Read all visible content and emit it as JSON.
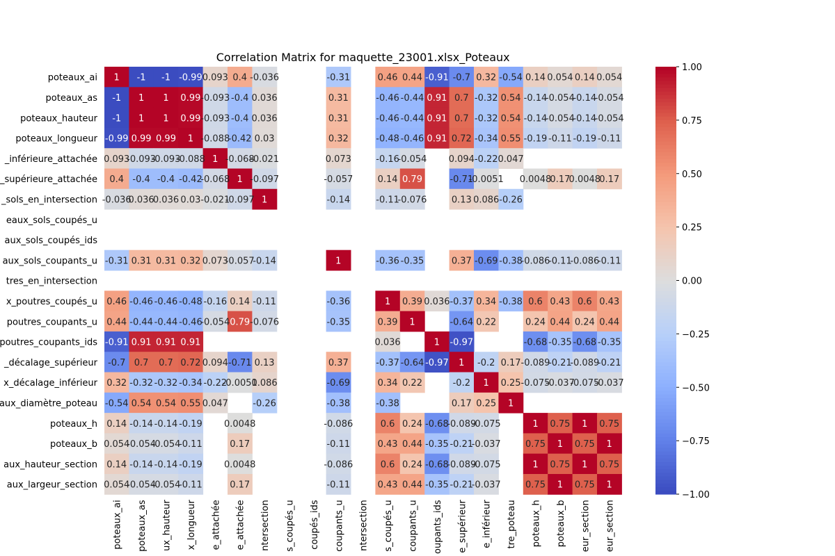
{
  "chart_data": {
    "type": "heatmap",
    "title": "Correlation Matrix for maquette_23001.xlsx_Poteaux",
    "y_labels": [
      "poteaux_ai",
      "poteaux_as",
      "poteaux_hauteur",
      "poteaux_longueur",
      "_inférieure_attachée",
      "_supérieure_attachée",
      "_sols_en_intersection",
      "eaux_sols_coupés_u",
      "aux_sols_coupés_ids",
      "aux_sols_coupants_u",
      "tres_en_intersection",
      "x_poutres_coupés_u",
      "poutres_coupants_u",
      "poutres_coupants_ids",
      "_décalage_supérieur",
      "x_décalage_inférieur",
      "aux_diamètre_poteau",
      "poteaux_h",
      "poteaux_b",
      "aux_hauteur_section",
      "aux_largeur_section"
    ],
    "x_labels": [
      "poteaux_ai",
      "poteaux_as",
      "ux_hauteur",
      "x_longueur",
      "e_attachée",
      "e_attachée",
      "ntersection",
      "s_coupés_u",
      "coupés_ids",
      "coupants_u",
      "ntersection",
      "s_coupés_u",
      "coupants_u",
      "oupants_ids",
      "e_supérieur",
      "e_inférieur",
      "tre_poteau",
      "poteaux_h",
      "poteaux_b",
      "eur_section",
      "eur_section"
    ],
    "matrix": [
      [
        1,
        -1,
        -1,
        -0.99,
        0.093,
        0.4,
        -0.036,
        null,
        null,
        -0.31,
        null,
        0.46,
        0.44,
        -0.91,
        -0.7,
        0.32,
        -0.54,
        0.14,
        0.054,
        0.14,
        0.054
      ],
      [
        -1,
        1,
        1,
        0.99,
        -0.093,
        -0.4,
        0.036,
        null,
        null,
        0.31,
        null,
        -0.46,
        -0.44,
        0.91,
        0.7,
        -0.32,
        0.54,
        -0.14,
        -0.054,
        -0.14,
        -0.054
      ],
      [
        -1,
        1,
        1,
        0.99,
        -0.093,
        -0.4,
        0.036,
        null,
        null,
        0.31,
        null,
        -0.46,
        -0.44,
        0.91,
        0.7,
        -0.32,
        0.54,
        -0.14,
        -0.054,
        -0.14,
        -0.054
      ],
      [
        -0.99,
        0.99,
        0.99,
        1,
        -0.088,
        -0.42,
        0.03,
        null,
        null,
        0.32,
        null,
        -0.48,
        -0.46,
        0.91,
        0.72,
        -0.34,
        0.55,
        -0.19,
        -0.11,
        -0.19,
        -0.11
      ],
      [
        0.093,
        -0.093,
        -0.093,
        -0.088,
        1,
        -0.068,
        -0.021,
        null,
        null,
        0.073,
        null,
        -0.16,
        -0.054,
        null,
        0.094,
        -0.22,
        0.047,
        null,
        null,
        null,
        null
      ],
      [
        0.4,
        -0.4,
        -0.4,
        -0.42,
        -0.068,
        1,
        -0.097,
        null,
        null,
        -0.057,
        null,
        0.14,
        0.79,
        null,
        -0.71,
        -0.0051,
        null,
        0.0048,
        0.17,
        0.0048,
        0.17
      ],
      [
        -0.036,
        0.036,
        0.036,
        0.03,
        -0.021,
        -0.097,
        1,
        null,
        null,
        -0.14,
        null,
        -0.11,
        -0.076,
        null,
        0.13,
        0.086,
        -0.26,
        null,
        null,
        null,
        null
      ],
      [
        null,
        null,
        null,
        null,
        null,
        null,
        null,
        null,
        null,
        null,
        null,
        null,
        null,
        null,
        null,
        null,
        null,
        null,
        null,
        null,
        null
      ],
      [
        null,
        null,
        null,
        null,
        null,
        null,
        null,
        null,
        null,
        null,
        null,
        null,
        null,
        null,
        null,
        null,
        null,
        null,
        null,
        null,
        null
      ],
      [
        -0.31,
        0.31,
        0.31,
        0.32,
        0.073,
        -0.057,
        -0.14,
        null,
        null,
        1,
        null,
        -0.36,
        -0.35,
        null,
        0.37,
        -0.69,
        -0.38,
        -0.086,
        -0.11,
        -0.086,
        -0.11
      ],
      [
        null,
        null,
        null,
        null,
        null,
        null,
        null,
        null,
        null,
        null,
        null,
        null,
        null,
        null,
        null,
        null,
        null,
        null,
        null,
        null,
        null
      ],
      [
        0.46,
        -0.46,
        -0.46,
        -0.48,
        -0.16,
        0.14,
        -0.11,
        null,
        null,
        -0.36,
        null,
        1,
        0.39,
        0.036,
        -0.37,
        0.34,
        -0.38,
        0.6,
        0.43,
        0.6,
        0.43
      ],
      [
        0.44,
        -0.44,
        -0.44,
        -0.46,
        -0.054,
        0.79,
        -0.076,
        null,
        null,
        -0.35,
        null,
        0.39,
        1,
        null,
        -0.64,
        0.22,
        null,
        0.24,
        0.44,
        0.24,
        0.44
      ],
      [
        -0.91,
        0.91,
        0.91,
        0.91,
        null,
        null,
        null,
        null,
        null,
        null,
        null,
        0.036,
        null,
        1,
        -0.97,
        null,
        null,
        -0.68,
        -0.35,
        -0.68,
        -0.35
      ],
      [
        -0.7,
        0.7,
        0.7,
        0.72,
        0.094,
        -0.71,
        0.13,
        null,
        null,
        0.37,
        null,
        -0.37,
        -0.64,
        -0.97,
        1,
        -0.2,
        0.17,
        -0.089,
        -0.21,
        -0.089,
        -0.21
      ],
      [
        0.32,
        -0.32,
        -0.32,
        -0.34,
        -0.22,
        -0.0051,
        0.086,
        null,
        null,
        -0.69,
        null,
        0.34,
        0.22,
        null,
        -0.2,
        1,
        0.25,
        -0.075,
        -0.037,
        -0.075,
        -0.037
      ],
      [
        -0.54,
        0.54,
        0.54,
        0.55,
        0.047,
        null,
        -0.26,
        null,
        null,
        -0.38,
        null,
        -0.38,
        null,
        null,
        0.17,
        0.25,
        1,
        null,
        null,
        null,
        null
      ],
      [
        0.14,
        -0.14,
        -0.14,
        -0.19,
        null,
        0.0048,
        null,
        null,
        null,
        -0.086,
        null,
        0.6,
        0.24,
        -0.68,
        -0.089,
        -0.075,
        null,
        1,
        0.75,
        1,
        0.75
      ],
      [
        0.054,
        -0.054,
        -0.054,
        -0.11,
        null,
        0.17,
        null,
        null,
        null,
        -0.11,
        null,
        0.43,
        0.44,
        -0.35,
        -0.21,
        -0.037,
        null,
        0.75,
        1,
        0.75,
        1
      ],
      [
        0.14,
        -0.14,
        -0.14,
        -0.19,
        null,
        0.0048,
        null,
        null,
        null,
        -0.086,
        null,
        0.6,
        0.24,
        -0.68,
        -0.089,
        -0.075,
        null,
        1,
        0.75,
        1,
        0.75
      ],
      [
        0.054,
        -0.054,
        -0.054,
        -0.11,
        null,
        0.17,
        null,
        null,
        null,
        -0.11,
        null,
        0.43,
        0.44,
        -0.35,
        -0.21,
        -0.037,
        null,
        0.75,
        1,
        0.75,
        1
      ]
    ],
    "colorbar_ticks": [
      "1.00",
      "0.75",
      "0.50",
      "0.25",
      "0.00",
      "−0.25",
      "−0.50",
      "−0.75",
      "−1.00"
    ],
    "vmin": -1,
    "vmax": 1,
    "colormap": "coolwarm",
    "colors": {
      "low": "#3b4cc0",
      "mid": "#dddddd",
      "high": "#b40426"
    }
  }
}
